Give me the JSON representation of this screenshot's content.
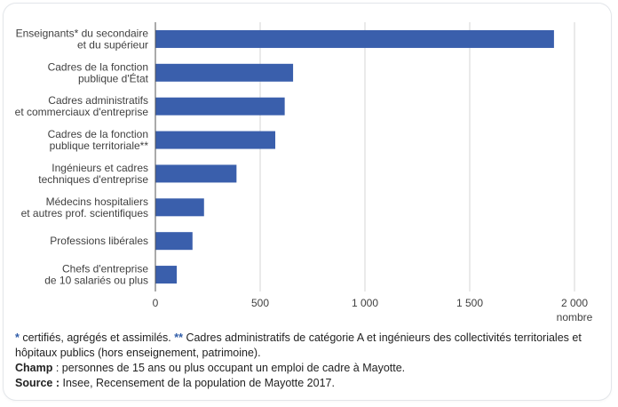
{
  "chart_data": {
    "type": "bar",
    "orientation": "horizontal",
    "categories": [
      [
        "Enseignants* du secondaire",
        "et du supérieur"
      ],
      [
        "Cadres de la fonction",
        "publique d'État"
      ],
      [
        "Cadres administratifs",
        "et commerciaux d'entreprise"
      ],
      [
        "Cadres de la fonction",
        "publique territoriale**"
      ],
      [
        "Ingénieurs et cadres",
        "techniques d'entreprise"
      ],
      [
        "Médecins hospitaliers",
        "et autres prof. scientifiques"
      ],
      [
        "Professions libérales"
      ],
      [
        "Chefs d'entreprise",
        "de 10 salariés ou plus"
      ]
    ],
    "values": [
      1900,
      655,
      615,
      570,
      385,
      230,
      175,
      100
    ],
    "xlim": [
      0,
      2000
    ],
    "xticks": [
      0,
      500,
      1000,
      1500,
      2000
    ],
    "xtick_labels": [
      "0",
      "500",
      "1 000",
      "1 500",
      "2 000"
    ],
    "xlabel": "nombre",
    "title": "",
    "grid": "vertical",
    "colors": {
      "bar": "#3a5fac",
      "grid": "#d4d4d4",
      "axis": "#555555"
    }
  },
  "notes": {
    "line1_prefix": "*",
    "line1_text_a": " certifiés, agrégés et assimilés. ",
    "line1_prefix2": "**",
    "line1_text_b": " Cadres administratifs de catégorie A et ingénieurs des collectivités territoriales et hôpitaux publics (hors enseignement, patrimoine).",
    "champ_label": "Champ",
    "champ_text": " : personnes de 15 ans ou plus occupant un emploi de cadre à Mayotte.",
    "source_label": "Source :",
    "source_text": " Insee, Recensement de la population de Mayotte 2017."
  }
}
